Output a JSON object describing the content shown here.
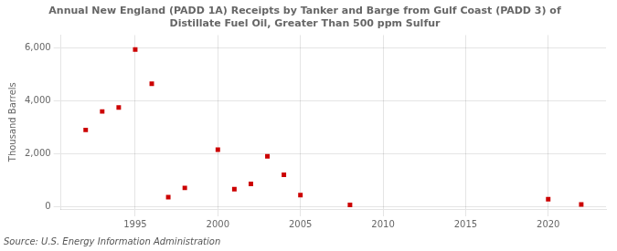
{
  "chart_data": {
    "type": "scatter",
    "title": [
      "Annual New England (PADD 1A) Receipts by Tanker and Barge from Gulf Coast (PADD 3) of",
      "Distillate Fuel Oil, Greater Than 500 ppm Sulfur"
    ],
    "ylabel": "Thousand Barrels",
    "source": "Source: U.S. Energy Information Administration",
    "x": [
      1992,
      1993,
      1994,
      1995,
      1996,
      1997,
      1998,
      2000,
      2001,
      2002,
      2003,
      2004,
      2005,
      2008,
      2020,
      2022
    ],
    "values": [
      2900,
      3600,
      3750,
      5950,
      4650,
      350,
      700,
      2150,
      650,
      850,
      1900,
      1200,
      425,
      55,
      275,
      75
    ],
    "color": "#cc0000",
    "marker": "square",
    "xlim": [
      1990.5,
      2023.5
    ],
    "xticks": [
      1995,
      2000,
      2005,
      2010,
      2015,
      2020
    ],
    "ylim": [
      -100,
      6500
    ],
    "yticks": [
      0,
      {
        "value": 2000,
        "label": "2,000"
      },
      {
        "value": 4000,
        "label": "4,000"
      },
      {
        "value": 6000,
        "label": "6,000"
      }
    ],
    "grid": true
  }
}
